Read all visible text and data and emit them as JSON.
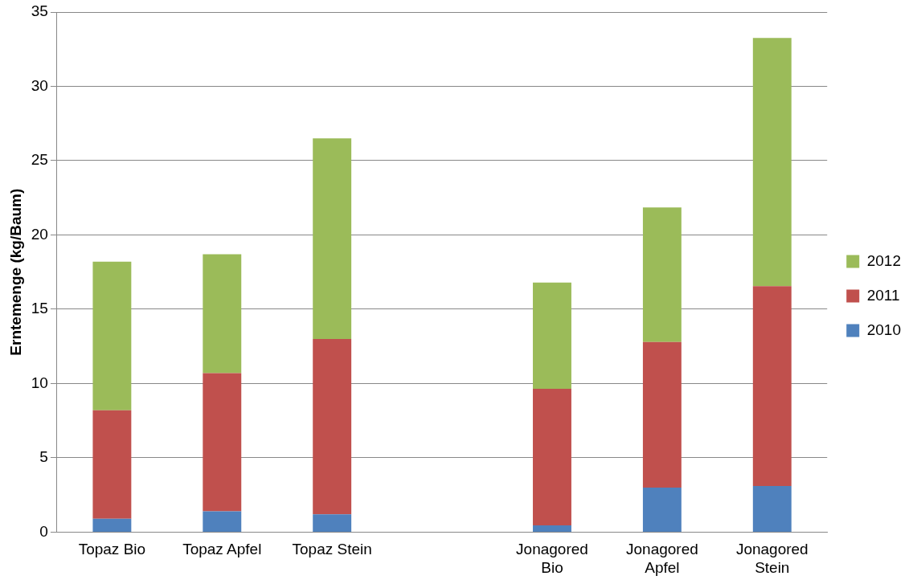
{
  "chart_data": {
    "type": "bar",
    "stacked": true,
    "ylabel": "Erntemenge (kg/Baum)",
    "categories": [
      "Topaz Bio",
      "Topaz Apfel",
      "Topaz Stein",
      null,
      "Jonagored Bio",
      "Jonagored Apfel",
      "Jonagored Stein"
    ],
    "series": [
      {
        "name": "2010",
        "color": "#4f81bd",
        "values": [
          0.9,
          1.4,
          1.2,
          null,
          0.45,
          3.0,
          3.1
        ]
      },
      {
        "name": "2011",
        "color": "#c0504d",
        "values": [
          7.3,
          9.3,
          11.8,
          null,
          9.2,
          9.8,
          13.45
        ]
      },
      {
        "name": "2012",
        "color": "#9bbb59",
        "values": [
          10.0,
          8.0,
          13.5,
          null,
          7.15,
          9.05,
          16.7
        ]
      }
    ],
    "ylim": [
      0,
      35
    ],
    "yticks": [
      0,
      5,
      10,
      15,
      20,
      25,
      30,
      35
    ],
    "grid": "y",
    "legend": "right"
  }
}
